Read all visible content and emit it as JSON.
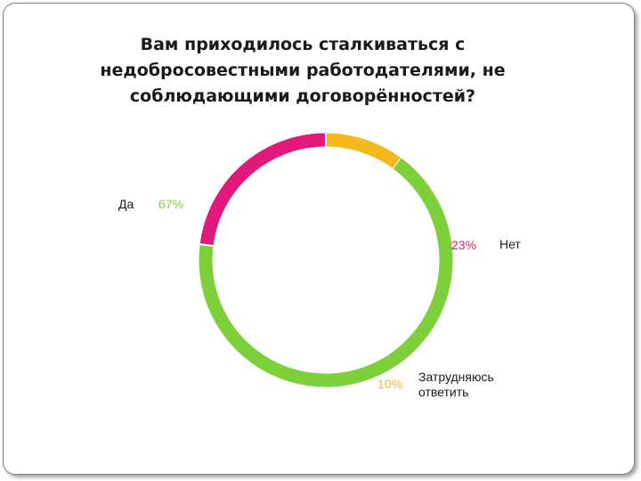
{
  "chart_data": {
    "type": "pie",
    "title_lines": [
      "Вам приходилось сталкиваться с",
      "недобросовестными работодателями, не",
      "соблюдающими договорённостей?"
    ],
    "categories": [
      "Да",
      "Нет",
      "Затрудняюсь ответить"
    ],
    "values": [
      67,
      23,
      10
    ],
    "value_labels": [
      "67%",
      "23%",
      "10%"
    ],
    "name_labels": [
      [
        "Да"
      ],
      [
        "Нет"
      ],
      [
        "Затрудняюсь",
        "ответить"
      ]
    ],
    "colors": [
      "#7ed03a",
      "#e0197a",
      "#f5b91e"
    ],
    "style": "ring"
  }
}
